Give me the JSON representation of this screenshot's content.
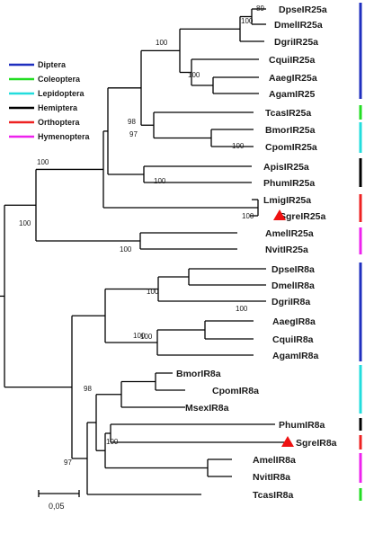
{
  "legend": [
    {
      "label": "Diptera",
      "color": "#1f2fbf"
    },
    {
      "label": "Coleoptera",
      "color": "#22dd22"
    },
    {
      "label": "Lepidoptera",
      "color": "#22dddd"
    },
    {
      "label": "Hemiptera",
      "color": "#000000"
    },
    {
      "label": "Orthoptera",
      "color": "#ee2222"
    },
    {
      "label": "Hymenoptera",
      "color": "#ee22ee"
    }
  ],
  "taxa": [
    "DpseIR25a",
    "DmelIR25a",
    "DgriIR25a",
    "CquiIR25a",
    "AaegIR25a",
    "AgamIR25",
    "TcasIR25a",
    "BmorIR25a",
    "CpomIR25a",
    "ApisIR25a",
    "PhumIR25a",
    "LmigIR25a",
    "SgreIR25a",
    "AmelIR25a",
    "NvitIR25a",
    "DpseIR8a",
    "DmelIR8a",
    "DgriIR8a",
    "AaegIR8a",
    "CquiIR8a",
    "AgamIR8a",
    "BmorIR8a",
    "CpomIR8a",
    "MsexIR8a",
    "PhumIR8a",
    "SgreIR8a",
    "AmelIR8a",
    "NvitIR8a",
    "TcasIR8a"
  ],
  "bootstrap": [
    "89",
    "100",
    "100",
    "100",
    "98",
    "97",
    "100",
    "100",
    "100",
    "100",
    "100",
    "100",
    "100",
    "100",
    "98",
    "100",
    "100",
    "97",
    "100"
  ],
  "scale_label": "0,05",
  "marker_color": "#ee1111"
}
